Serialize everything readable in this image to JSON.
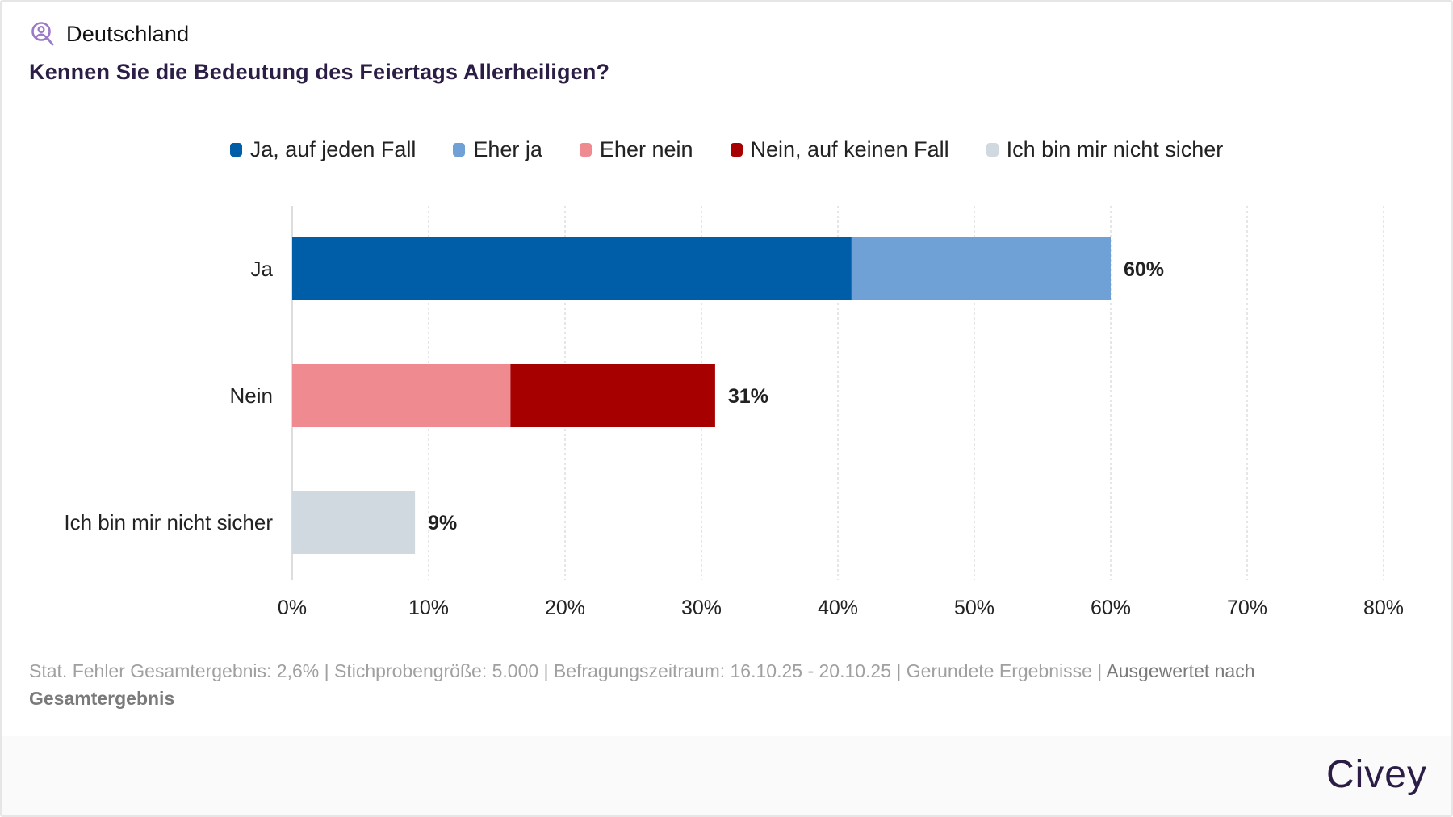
{
  "header": {
    "region_icon": "user-search-icon",
    "region": "Deutschland",
    "question": "Kennen Sie die Bedeutung des Feiertags Allerheiligen?"
  },
  "colors": {
    "accent_icon": "#9b7ac9",
    "title": "#2b1d45",
    "ja_auf_jeden_fall": "#005ea8",
    "eher_ja": "#6fa1d6",
    "eher_nein": "#f08a91",
    "nein_auf_keinen_fall": "#a60000",
    "nicht_sicher": "#d0d8e0"
  },
  "chart_data": {
    "type": "bar",
    "orientation": "horizontal",
    "stacked": true,
    "title": "Kennen Sie die Bedeutung des Feiertags Allerheiligen?",
    "xlabel": "",
    "ylabel": "",
    "categories": [
      "Ja",
      "Nein",
      "Ich bin mir nicht sicher"
    ],
    "series": [
      {
        "name": "Ja, auf jeden Fall",
        "color": "#005ea8",
        "values": [
          41,
          0,
          0
        ]
      },
      {
        "name": "Eher ja",
        "color": "#6fa1d6",
        "values": [
          19,
          0,
          0
        ]
      },
      {
        "name": "Eher nein",
        "color": "#f08a91",
        "values": [
          0,
          16,
          0
        ]
      },
      {
        "name": "Nein, auf keinen Fall",
        "color": "#a60000",
        "values": [
          0,
          15,
          0
        ]
      },
      {
        "name": "Ich bin mir nicht sicher",
        "color": "#d0d8e0",
        "values": [
          0,
          0,
          9
        ]
      }
    ],
    "totals": [
      60,
      31,
      9
    ],
    "total_labels": [
      "60%",
      "31%",
      "9%"
    ],
    "xlim": [
      0,
      80
    ],
    "xticks": [
      0,
      10,
      20,
      30,
      40,
      50,
      60,
      70,
      80
    ],
    "xtick_labels": [
      "0%",
      "10%",
      "20%",
      "30%",
      "40%",
      "50%",
      "60%",
      "70%",
      "80%"
    ],
    "grid": "vertical dotted",
    "legend_position": "top-center"
  },
  "footer": {
    "stats": "Stat. Fehler Gesamtergebnis: 2,6% | Stichprobengröße: 5.000 | Befragungszeitraum: 16.10.25 - 20.10.25 | Gerundete Ergebnisse | ",
    "evaluated_by_label": "Ausgewertet nach",
    "evaluated_by_value": "Gesamtergebnis"
  },
  "brand": {
    "logo_text": "Civey"
  }
}
